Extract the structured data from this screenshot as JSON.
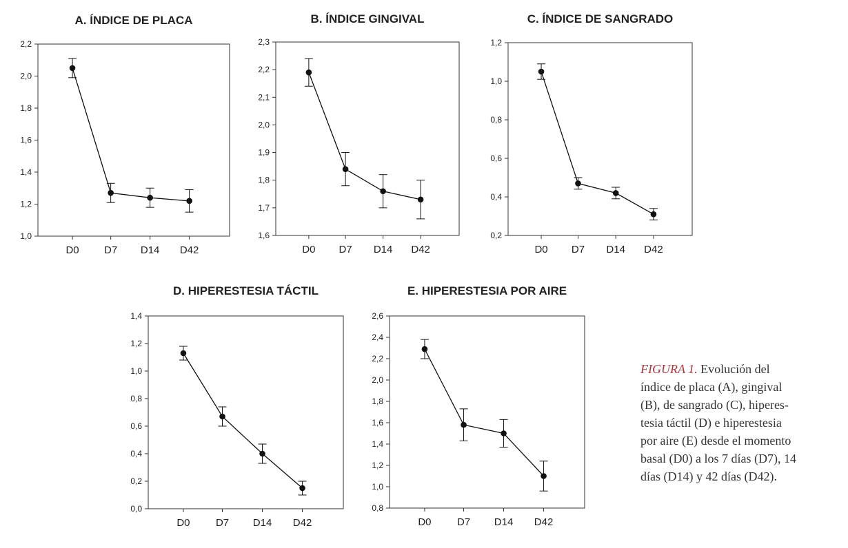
{
  "chart_data": [
    {
      "type": "line",
      "title": "A. ÍNDICE DE PLACA",
      "categories": [
        "D0",
        "D7",
        "D14",
        "D42"
      ],
      "values": [
        2.05,
        1.27,
        1.24,
        1.22
      ],
      "error_low": [
        1.99,
        1.21,
        1.18,
        1.15
      ],
      "error_high": [
        2.11,
        1.33,
        1.3,
        1.29
      ],
      "ylim": [
        1.0,
        2.2
      ],
      "yticks": [
        1.0,
        1.2,
        1.4,
        1.6,
        1.8,
        2.0,
        2.2
      ],
      "ytick_labels": [
        "1,0",
        "1,2",
        "1,4",
        "1,6",
        "1,8",
        "2,0",
        "2,2"
      ],
      "grid": false
    },
    {
      "type": "line",
      "title": "B. ÍNDICE GINGIVAL",
      "categories": [
        "D0",
        "D7",
        "D14",
        "D42"
      ],
      "values": [
        2.19,
        1.84,
        1.76,
        1.73
      ],
      "error_low": [
        2.14,
        1.78,
        1.7,
        1.66
      ],
      "error_high": [
        2.24,
        1.9,
        1.82,
        1.8
      ],
      "ylim": [
        1.6,
        2.3
      ],
      "yticks": [
        1.6,
        1.7,
        1.8,
        1.9,
        2.0,
        2.1,
        2.2,
        2.3
      ],
      "ytick_labels": [
        "1,6",
        "1,7",
        "1,8",
        "1,9",
        "2,0",
        "2,1",
        "2,2",
        "2,3"
      ],
      "grid": false
    },
    {
      "type": "line",
      "title": "C. ÍNDICE DE SANGRADO",
      "categories": [
        "D0",
        "D7",
        "D14",
        "D42"
      ],
      "values": [
        1.05,
        0.47,
        0.42,
        0.31
      ],
      "error_low": [
        1.01,
        0.44,
        0.39,
        0.28
      ],
      "error_high": [
        1.09,
        0.5,
        0.45,
        0.34
      ],
      "ylim": [
        0.2,
        1.2
      ],
      "yticks": [
        0.2,
        0.4,
        0.6,
        0.8,
        1.0,
        1.2
      ],
      "ytick_labels": [
        "0,2",
        "0,4",
        "0,6",
        "0,8",
        "1,0",
        "1,2"
      ],
      "grid": false
    },
    {
      "type": "line",
      "title": "D. HIPERESTESIA TÁCTIL",
      "categories": [
        "D0",
        "D7",
        "D14",
        "D42"
      ],
      "values": [
        1.13,
        0.67,
        0.4,
        0.15
      ],
      "error_low": [
        1.08,
        0.6,
        0.33,
        0.1
      ],
      "error_high": [
        1.18,
        0.74,
        0.47,
        0.2
      ],
      "ylim": [
        0.0,
        1.4
      ],
      "yticks": [
        0.0,
        0.2,
        0.4,
        0.6,
        0.8,
        1.0,
        1.2,
        1.4
      ],
      "ytick_labels": [
        "0,0",
        "0,2",
        "0,4",
        "0,6",
        "0,8",
        "1,0",
        "1,2",
        "1,4"
      ],
      "grid": false
    },
    {
      "type": "line",
      "title": "E. HIPERESTESIA POR AIRE",
      "categories": [
        "D0",
        "D7",
        "D14",
        "D42"
      ],
      "values": [
        2.29,
        1.58,
        1.5,
        1.1
      ],
      "error_low": [
        2.2,
        1.43,
        1.37,
        0.96
      ],
      "error_high": [
        2.38,
        1.73,
        1.63,
        1.24
      ],
      "ylim": [
        0.8,
        2.6
      ],
      "yticks": [
        0.8,
        1.0,
        1.2,
        1.4,
        1.6,
        1.8,
        2.0,
        2.2,
        2.4,
        2.6
      ],
      "ytick_labels": [
        "0,8",
        "1,0",
        "1,2",
        "1,4",
        "1,6",
        "1,8",
        "2,0",
        "2,2",
        "2,4",
        "2,6"
      ],
      "grid": false
    }
  ],
  "caption": {
    "label": "FIGURA 1.",
    "lines": [
      " Evolución del",
      "índice de placa (A), gingival",
      "(B), de sangrado (C), hiperes-",
      "tesia táctil (D) e hiperestesia",
      "por aire (E) desde el momento",
      "basal (D0) a los 7 días (D7), 14",
      "días (D14) y 42 días (D42)."
    ]
  },
  "colors": {
    "axis": "#333333",
    "series": "#111111",
    "caption_label": "#b0333a",
    "caption_text": "#333333"
  }
}
